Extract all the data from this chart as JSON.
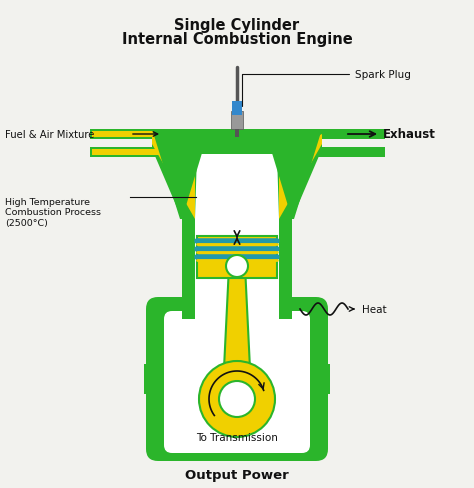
{
  "title_line1": "Single Cylinder",
  "title_line2": "Internal Combustion Engine",
  "bg_color": "#f2f2ee",
  "green": "#2bb52b",
  "yellow": "#f0d000",
  "blue": "#3388cc",
  "white": "#ffffff",
  "black": "#111111",
  "gray": "#999999",
  "darkgray": "#555555",
  "teal": "#2299aa",
  "labels": {
    "spark_plug": "Spark Plug",
    "fuel_air": "Fuel & Air Mixture",
    "exhaust": "Exhaust",
    "high_temp": "High Temperature\nCombustion Process\n(2500°C)",
    "heat": "Heat",
    "to_transmission": "To Transmission",
    "output_power": "Output Power"
  }
}
